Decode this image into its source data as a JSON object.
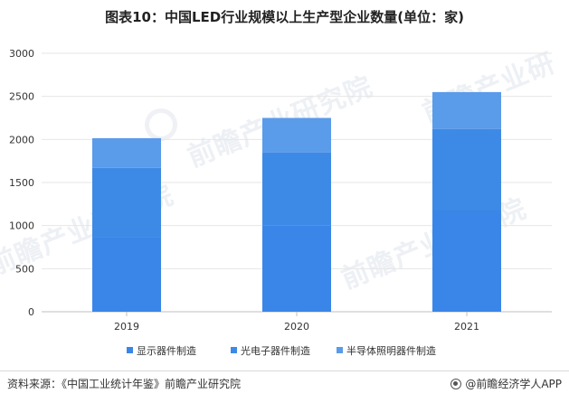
{
  "title": "图表10：中国LED行业规模以上生产型企业数量(单位：家)",
  "source": "资料来源：《中国工业统计年鉴》前瞻产业研究院",
  "brand": "@前瞻经济学人APP",
  "watermark": "前瞻产业研究院",
  "colors": {
    "series": [
      "#3a86e8",
      "#3d8ae6",
      "#5a9bea"
    ],
    "axis": "#bfbfbf",
    "grid": "#e6e6e6",
    "text": "#333333"
  },
  "chart_data": {
    "type": "bar",
    "stacked": true,
    "categories": [
      "2019",
      "2020",
      "2021"
    ],
    "series": [
      {
        "name": "显示器件制造",
        "values": [
          870,
          1000,
          1180
        ]
      },
      {
        "name": "光电子器件制造",
        "values": [
          800,
          850,
          940
        ]
      },
      {
        "name": "半导体照明器件制造",
        "values": [
          345,
          400,
          430
        ]
      }
    ],
    "ylim": [
      0,
      3000
    ],
    "yticks": [
      0,
      500,
      1000,
      1500,
      2000,
      2500,
      3000
    ],
    "grid": true,
    "legend": "bottom"
  }
}
